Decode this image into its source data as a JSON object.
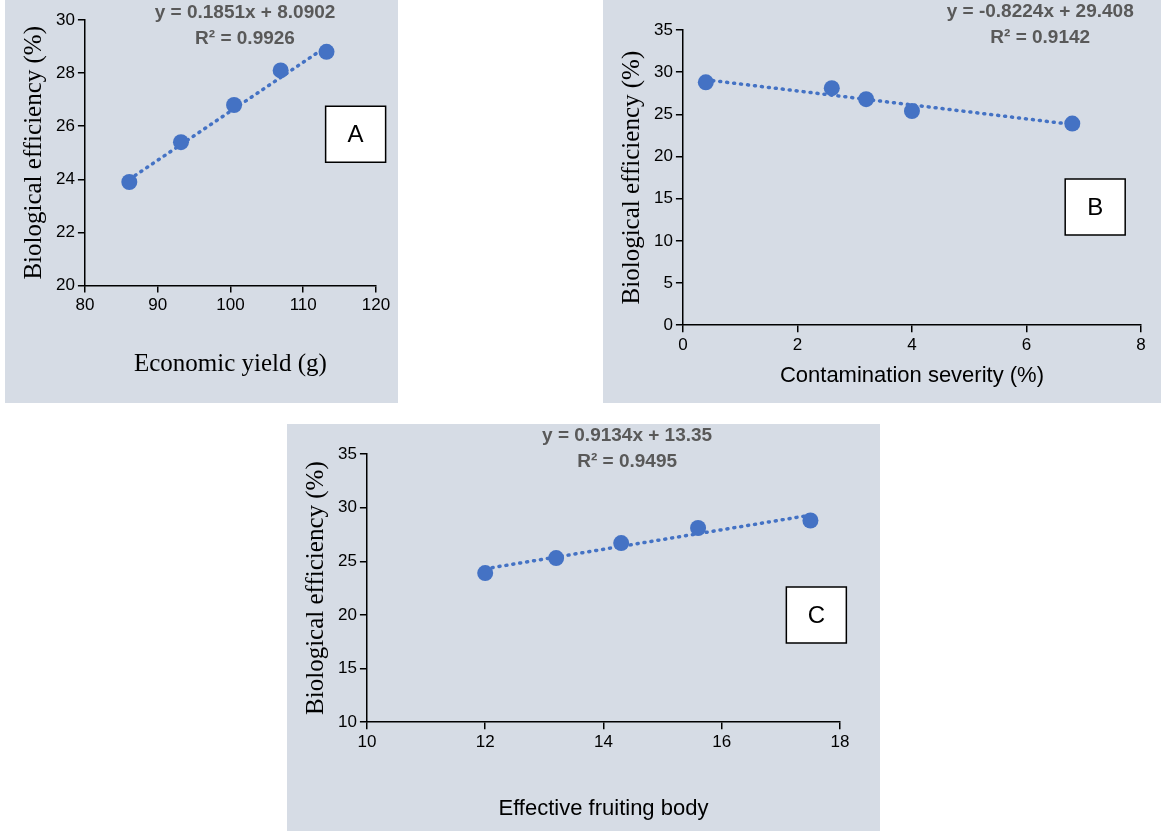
{
  "chart_data": [
    {
      "type": "scatter",
      "xlabel": "Economic yield (g)",
      "ylabel": "Biological efficiency (%)",
      "xlim": [
        80,
        120
      ],
      "xticks": [
        80,
        90,
        100,
        110,
        120
      ],
      "ylim": [
        20,
        30
      ],
      "yticks": [
        20,
        22,
        24,
        26,
        28,
        30
      ],
      "grid": false,
      "legend": false,
      "annotations": [
        "y = 0.1851x + 8.0902",
        "R² = 0.9926",
        "A"
      ],
      "series": [
        {
          "color": "#4472c4",
          "marker": "circle",
          "x": [
            86.1,
            93.2,
            100.5,
            106.9,
            113.2
          ],
          "values": [
            23.9,
            25.4,
            26.8,
            28.1,
            28.8
          ]
        },
        {
          "type": "line",
          "color": "#4472c4",
          "marker": "none",
          "line_style": "dotted",
          "x": [
            86.1,
            113.2
          ],
          "values": [
            24.0,
            29.0
          ]
        }
      ]
    },
    {
      "type": "scatter",
      "xlabel": "Contamination severity (%)",
      "ylabel": "Biological efficiency (%)",
      "xlim": [
        0,
        8
      ],
      "xticks": [
        0,
        2,
        4,
        6,
        8
      ],
      "ylim": [
        0,
        35
      ],
      "yticks": [
        0,
        5,
        10,
        15,
        20,
        25,
        30,
        35
      ],
      "grid": false,
      "legend": false,
      "annotations": [
        "y = -0.8224x + 29.408",
        "R² = 0.9142",
        "B"
      ],
      "series": [
        {
          "color": "#4472c4",
          "marker": "circle",
          "x": [
            0.4,
            2.6,
            3.2,
            4.0,
            6.8
          ],
          "values": [
            28.8,
            28.1,
            26.8,
            25.4,
            23.9
          ]
        },
        {
          "type": "line",
          "color": "#4472c4",
          "marker": "none",
          "line_style": "dotted",
          "x": [
            0.4,
            6.8
          ],
          "values": [
            29.1,
            23.8
          ]
        }
      ]
    },
    {
      "type": "scatter",
      "xlabel": "Effective fruiting body",
      "ylabel": "Biological efficiency (%)",
      "xlim": [
        10,
        18
      ],
      "xticks": [
        10,
        12,
        14,
        16,
        18
      ],
      "ylim": [
        10,
        35
      ],
      "yticks": [
        10,
        15,
        20,
        25,
        30,
        35
      ],
      "grid": false,
      "legend": false,
      "annotations": [
        "y = 0.9134x + 13.35",
        "R² = 0.9495",
        "C"
      ],
      "series": [
        {
          "color": "#4472c4",
          "marker": "circle",
          "x": [
            12.0,
            13.2,
            14.3,
            15.6,
            17.5
          ],
          "values": [
            23.9,
            25.3,
            26.7,
            28.1,
            28.8
          ]
        },
        {
          "type": "line",
          "color": "#4472c4",
          "marker": "none",
          "line_style": "dotted",
          "x": [
            12.0,
            17.5
          ],
          "values": [
            24.3,
            29.3
          ]
        }
      ]
    }
  ]
}
